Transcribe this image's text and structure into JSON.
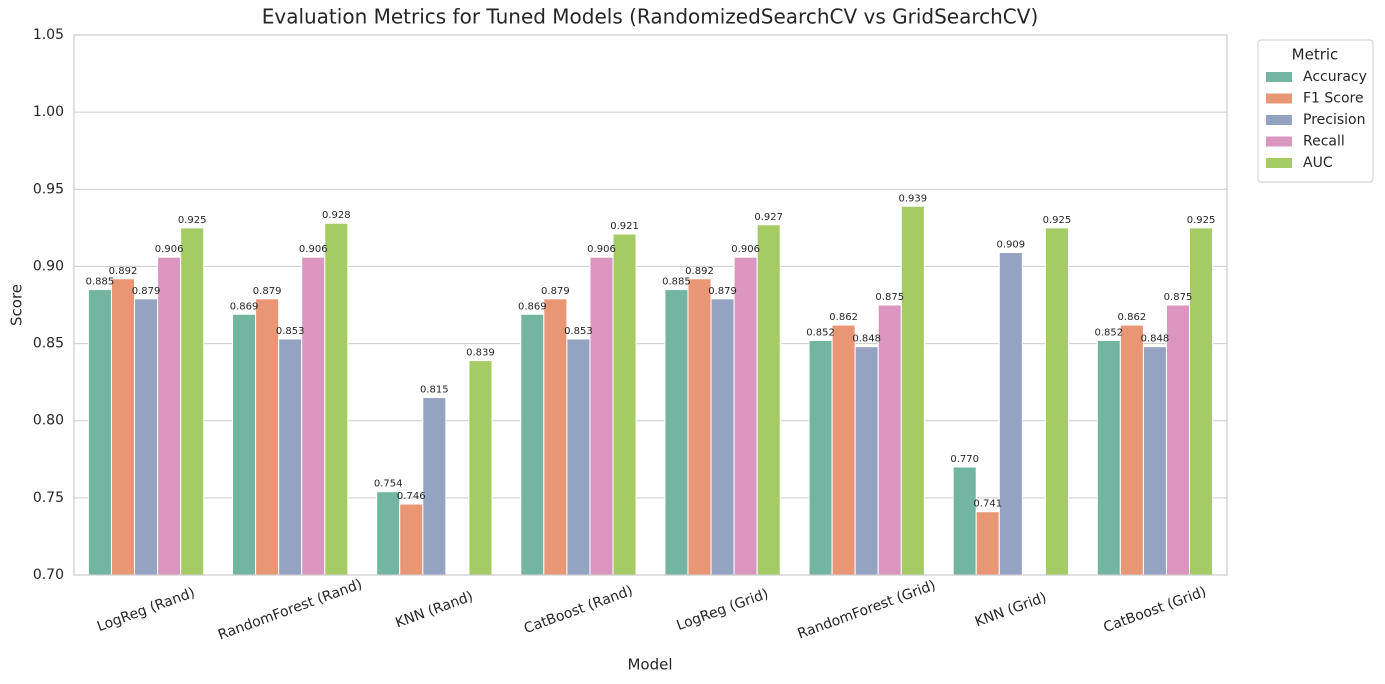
{
  "chart_data": {
    "type": "bar",
    "title": "Evaluation Metrics for Tuned Models (RandomizedSearchCV vs GridSearchCV)",
    "x_label": "Model",
    "y_label": "Score",
    "categories": [
      "LogReg (Rand)",
      "RandomForest (Rand)",
      "KNN (Rand)",
      "CatBoost (Rand)",
      "LogReg (Grid)",
      "RandomForest (Grid)",
      "KNN (Grid)",
      "CatBoost (Grid)"
    ],
    "series": [
      {
        "name": "Accuracy",
        "color": "#72b6a1",
        "values": [
          0.885,
          0.869,
          0.754,
          0.869,
          0.885,
          0.852,
          0.77,
          0.852
        ],
        "value_labels": [
          "0.885",
          "0.869",
          "0.754",
          "0.869",
          "0.885",
          "0.852",
          "0.770",
          "0.852"
        ]
      },
      {
        "name": "F1 Score",
        "color": "#e99675",
        "values": [
          0.892,
          0.879,
          0.746,
          0.879,
          0.892,
          0.862,
          0.741,
          0.862
        ],
        "value_labels": [
          "0.892",
          "0.879",
          "0.746",
          "0.879",
          "0.892",
          "0.862",
          "0.741",
          "0.862"
        ]
      },
      {
        "name": "Precision",
        "color": "#95a3c3",
        "values": [
          0.879,
          0.853,
          0.815,
          0.853,
          0.879,
          0.848,
          0.909,
          0.848
        ],
        "value_labels": [
          "0.879",
          "0.853",
          "0.815",
          "0.853",
          "0.879",
          "0.848",
          "0.909",
          "0.848"
        ]
      },
      {
        "name": "Recall",
        "color": "#db96c0",
        "values": [
          0.906,
          0.906,
          null,
          0.906,
          0.906,
          0.875,
          null,
          0.875
        ],
        "value_labels": [
          "0.906",
          "0.906",
          null,
          "0.906",
          "0.906",
          "0.875",
          null,
          "0.875"
        ]
      },
      {
        "name": "AUC",
        "color": "#a4cb64",
        "values": [
          0.925,
          0.928,
          0.839,
          0.921,
          0.927,
          0.939,
          0.925,
          0.925
        ],
        "value_labels": [
          "0.925",
          "0.928",
          "0.839",
          "0.921",
          "0.927",
          "0.939",
          "0.925",
          "0.925"
        ]
      }
    ],
    "legend_title": "Metric",
    "legend_loc": "outside upper right",
    "ylim": [
      0.7,
      1.05
    ],
    "yticks": [
      {
        "value": 0.7,
        "label": "0.70"
      },
      0.75,
      {
        "value": 0.8,
        "label": "0.80"
      },
      0.85,
      {
        "value": 0.9,
        "label": "0.90"
      },
      0.95,
      {
        "value": 1.0,
        "label": "1.00"
      },
      1.05
    ],
    "grid": true
  }
}
